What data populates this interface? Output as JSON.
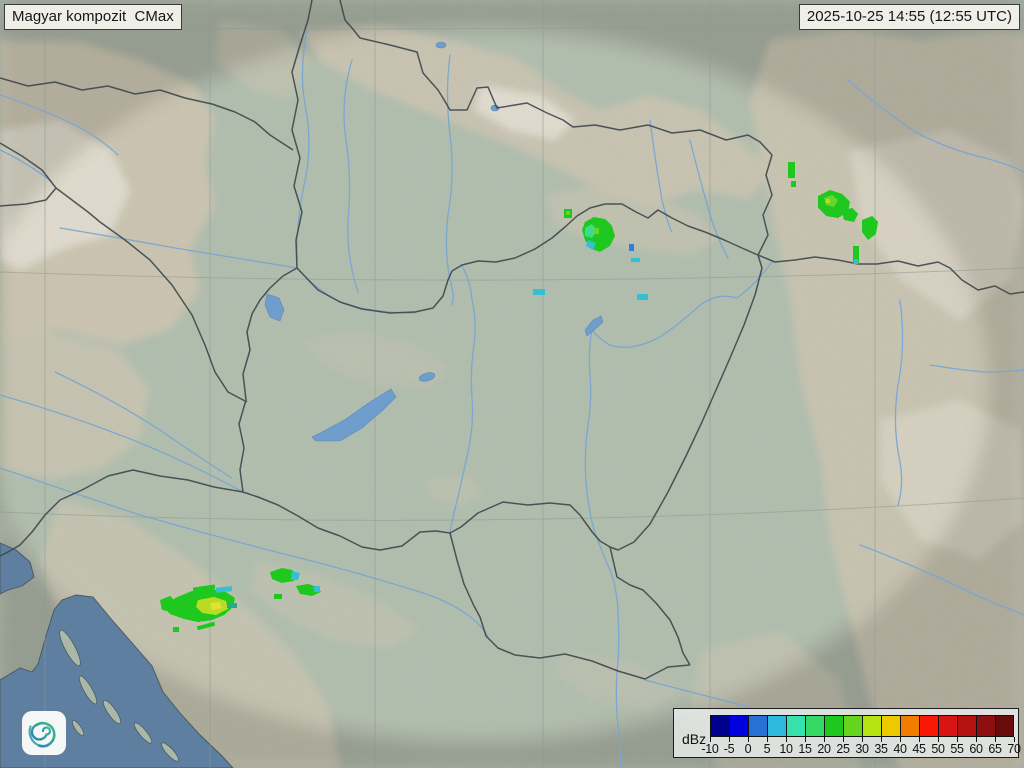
{
  "header": {
    "product_label": "Magyar kompozit  CMax",
    "timestamp": "2025-10-25 14:55 (12:55 UTC)"
  },
  "legend": {
    "unit": "dBz",
    "ticks": [
      "-10",
      "-5",
      "0",
      "5",
      "10",
      "15",
      "20",
      "25",
      "30",
      "35",
      "40",
      "45",
      "50",
      "55",
      "60",
      "65",
      "70"
    ],
    "colors": [
      "#00008f",
      "#0000e0",
      "#2671d3",
      "#2cb9dd",
      "#36e2ab",
      "#35d964",
      "#1fc81f",
      "#66d41c",
      "#b5e312",
      "#eec900",
      "#f07c00",
      "#f71906",
      "#d91414",
      "#b51111",
      "#8e0f0f",
      "#670b0b"
    ]
  },
  "map": {
    "colors": {
      "land": "#a8b1a4",
      "domain_tint": "#bdd0bc",
      "mountain": "#cfc7b4",
      "ridge_highlight": "#e9e4d8",
      "sea": "#5e7fa0",
      "river": "#79a5d3",
      "lake": "#6f9dcc",
      "border": "#3d464b",
      "graticule": "#8d9894"
    },
    "echo_colors": {
      "green": "#1fc81f",
      "light_green": "#6ad42e",
      "yellow_green": "#b8dc24",
      "yellow": "#dde32e",
      "cyan": "#35bfd4",
      "spring_green": "#3bdc8c",
      "blue": "#2d7fd8",
      "teal": "#2ea888"
    }
  }
}
